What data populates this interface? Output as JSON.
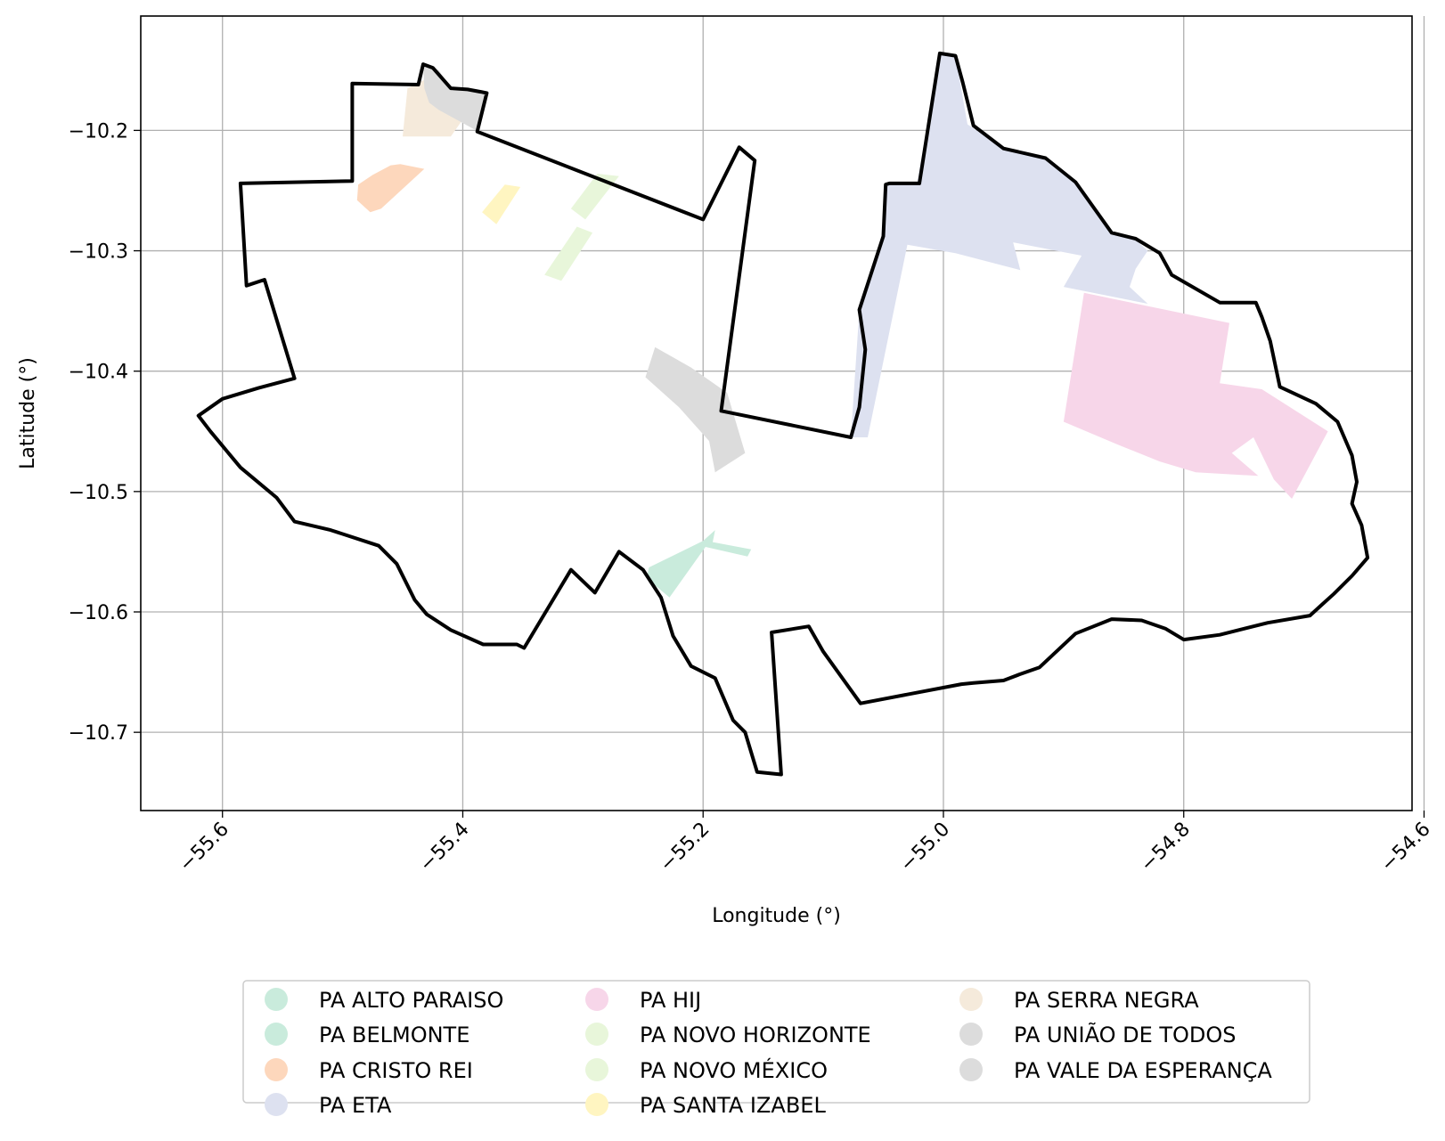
{
  "chart_data": {
    "type": "map",
    "xlabel": "Longitude (°)",
    "ylabel": "Latitude (°)",
    "xlim": [
      -55.668,
      -54.61
    ],
    "ylim": [
      -10.765,
      -10.105
    ],
    "grid": true,
    "x_ticks": [
      -55.6,
      -55.4,
      -55.2,
      -55.0,
      -54.8,
      -54.6
    ],
    "x_tick_labels": [
      "−55.6",
      "−55.4",
      "−55.2",
      "−55.0",
      "−54.8",
      "−54.6"
    ],
    "y_ticks": [
      -10.2,
      -10.3,
      -10.4,
      -10.5,
      -10.6,
      -10.7
    ],
    "y_tick_labels": [
      "−10.2",
      "−10.3",
      "−10.4",
      "−10.5",
      "−10.6",
      "−10.7"
    ],
    "legend_position": "bottom-center",
    "boundary": {
      "color": "#000000",
      "points": [
        [
          -55.62,
          -10.437
        ],
        [
          -55.6,
          -10.423
        ],
        [
          -55.57,
          -10.414
        ],
        [
          -55.54,
          -10.406
        ],
        [
          -55.565,
          -10.324
        ],
        [
          -55.58,
          -10.329
        ],
        [
          -55.585,
          -10.244
        ],
        [
          -55.492,
          -10.242
        ],
        [
          -55.492,
          -10.161
        ],
        [
          -55.437,
          -10.162
        ],
        [
          -55.433,
          -10.145
        ],
        [
          -55.425,
          -10.148
        ],
        [
          -55.41,
          -10.165
        ],
        [
          -55.396,
          -10.166
        ],
        [
          -55.385,
          -10.168
        ],
        [
          -55.38,
          -10.169
        ],
        [
          -55.388,
          -10.201
        ],
        [
          -55.2,
          -10.274
        ],
        [
          -55.17,
          -10.214
        ],
        [
          -55.157,
          -10.225
        ],
        [
          -55.185,
          -10.433
        ],
        [
          -55.077,
          -10.455
        ],
        [
          -55.07,
          -10.43
        ],
        [
          -55.065,
          -10.382
        ],
        [
          -55.07,
          -10.349
        ],
        [
          -55.05,
          -10.288
        ],
        [
          -55.048,
          -10.245
        ],
        [
          -55.045,
          -10.244
        ],
        [
          -55.02,
          -10.244
        ],
        [
          -55.003,
          -10.136
        ],
        [
          -54.99,
          -10.138
        ],
        [
          -54.984,
          -10.16
        ],
        [
          -54.975,
          -10.196
        ],
        [
          -54.95,
          -10.215
        ],
        [
          -54.915,
          -10.223
        ],
        [
          -54.89,
          -10.243
        ],
        [
          -54.86,
          -10.285
        ],
        [
          -54.84,
          -10.29
        ],
        [
          -54.82,
          -10.302
        ],
        [
          -54.81,
          -10.32
        ],
        [
          -54.77,
          -10.343
        ],
        [
          -54.74,
          -10.343
        ],
        [
          -54.735,
          -10.355
        ],
        [
          -54.728,
          -10.375
        ],
        [
          -54.72,
          -10.413
        ],
        [
          -54.69,
          -10.427
        ],
        [
          -54.672,
          -10.442
        ],
        [
          -54.66,
          -10.47
        ],
        [
          -54.656,
          -10.492
        ],
        [
          -54.66,
          -10.51
        ],
        [
          -54.652,
          -10.528
        ],
        [
          -54.647,
          -10.555
        ],
        [
          -54.66,
          -10.57
        ],
        [
          -54.675,
          -10.585
        ],
        [
          -54.685,
          -10.594
        ],
        [
          -54.695,
          -10.603
        ],
        [
          -54.73,
          -10.609
        ],
        [
          -54.77,
          -10.619
        ],
        [
          -54.8,
          -10.623
        ],
        [
          -54.815,
          -10.614
        ],
        [
          -54.835,
          -10.607
        ],
        [
          -54.86,
          -10.606
        ],
        [
          -54.89,
          -10.618
        ],
        [
          -54.92,
          -10.646
        ],
        [
          -54.937,
          -10.652
        ],
        [
          -54.95,
          -10.657
        ],
        [
          -54.975,
          -10.659
        ],
        [
          -54.985,
          -10.66
        ],
        [
          -55.069,
          -10.676
        ],
        [
          -55.1,
          -10.633
        ],
        [
          -55.112,
          -10.612
        ],
        [
          -55.143,
          -10.617
        ],
        [
          -55.135,
          -10.735
        ],
        [
          -55.155,
          -10.733
        ],
        [
          -55.165,
          -10.7
        ],
        [
          -55.175,
          -10.69
        ],
        [
          -55.19,
          -10.655
        ],
        [
          -55.21,
          -10.645
        ],
        [
          -55.225,
          -10.62
        ],
        [
          -55.235,
          -10.588
        ],
        [
          -55.25,
          -10.565
        ],
        [
          -55.27,
          -10.55
        ],
        [
          -55.29,
          -10.584
        ],
        [
          -55.31,
          -10.565
        ],
        [
          -55.349,
          -10.63
        ],
        [
          -55.355,
          -10.627
        ],
        [
          -55.383,
          -10.627
        ],
        [
          -55.41,
          -10.615
        ],
        [
          -55.43,
          -10.602
        ],
        [
          -55.44,
          -10.59
        ],
        [
          -55.455,
          -10.56
        ],
        [
          -55.47,
          -10.545
        ],
        [
          -55.51,
          -10.532
        ],
        [
          -55.54,
          -10.525
        ],
        [
          -55.555,
          -10.505
        ],
        [
          -55.585,
          -10.48
        ],
        [
          -55.61,
          -10.45
        ],
        [
          -55.62,
          -10.437
        ]
      ]
    },
    "regions": [
      {
        "name": "PA ALTO PARAISO",
        "color": "#c9ebdc",
        "polygons": [
          [
            [
              -55.245,
              -10.563
            ],
            [
              -55.2,
              -10.541
            ],
            [
              -55.19,
              -10.532
            ],
            [
              -55.192,
              -10.542
            ],
            [
              -55.16,
              -10.548
            ],
            [
              -55.163,
              -10.554
            ],
            [
              -55.198,
              -10.546
            ],
            [
              -55.228,
              -10.588
            ],
            [
              -55.247,
              -10.572
            ]
          ]
        ]
      },
      {
        "name": "PA BELMONTE",
        "color": "#c9ebdc",
        "polygons": []
      },
      {
        "name": "PA CRISTO REI",
        "color": "#fdd7bc",
        "polygons": [
          [
            [
              -55.475,
              -10.237
            ],
            [
              -55.46,
              -10.229
            ],
            [
              -55.452,
              -10.228
            ],
            [
              -55.432,
              -10.232
            ],
            [
              -55.468,
              -10.265
            ],
            [
              -55.477,
              -10.268
            ],
            [
              -55.488,
              -10.258
            ],
            [
              -55.487,
              -10.245
            ]
          ]
        ]
      },
      {
        "name": "PA ETA",
        "color": "#dde1f0",
        "polygons": [
          [
            [
              -55.048,
              -10.245
            ],
            [
              -55.022,
              -10.244
            ],
            [
              -55.003,
              -10.137
            ],
            [
              -54.99,
              -10.138
            ],
            [
              -54.98,
              -10.195
            ],
            [
              -54.95,
              -10.215
            ],
            [
              -54.913,
              -10.224
            ],
            [
              -54.89,
              -10.244
            ],
            [
              -54.86,
              -10.285
            ],
            [
              -54.84,
              -10.291
            ],
            [
              -54.83,
              -10.3
            ],
            [
              -54.84,
              -10.315
            ],
            [
              -54.845,
              -10.33
            ],
            [
              -54.83,
              -10.344
            ],
            [
              -54.9,
              -10.33
            ],
            [
              -54.885,
              -10.304
            ],
            [
              -54.942,
              -10.293
            ],
            [
              -54.936,
              -10.316
            ],
            [
              -54.99,
              -10.302
            ],
            [
              -55.03,
              -10.295
            ],
            [
              -55.063,
              -10.455
            ],
            [
              -55.077,
              -10.455
            ],
            [
              -55.07,
              -10.349
            ],
            [
              -55.05,
              -10.288
            ]
          ]
        ]
      },
      {
        "name": "PA HIJ",
        "color": "#f7d6e9",
        "polygons": [
          [
            [
              -54.883,
              -10.335
            ],
            [
              -54.762,
              -10.36
            ],
            [
              -54.77,
              -10.41
            ],
            [
              -54.735,
              -10.415
            ],
            [
              -54.68,
              -10.45
            ],
            [
              -54.71,
              -10.506
            ],
            [
              -54.725,
              -10.49
            ],
            [
              -54.742,
              -10.455
            ],
            [
              -54.76,
              -10.468
            ],
            [
              -54.738,
              -10.487
            ],
            [
              -54.79,
              -10.484
            ],
            [
              -54.82,
              -10.475
            ],
            [
              -54.855,
              -10.461
            ],
            [
              -54.9,
              -10.442
            ]
          ]
        ]
      },
      {
        "name": "PA NOVO HORIZONTE",
        "color": "#e8f6da",
        "polygons": [
          [
            [
              -55.288,
              -10.236
            ],
            [
              -55.27,
              -10.238
            ],
            [
              -55.298,
              -10.274
            ],
            [
              -55.31,
              -10.265
            ]
          ]
        ]
      },
      {
        "name": "PA NOVO MÉXICO",
        "color": "#e8f6da",
        "polygons": [
          [
            [
              -55.305,
              -10.28
            ],
            [
              -55.292,
              -10.285
            ],
            [
              -55.318,
              -10.325
            ],
            [
              -55.332,
              -10.32
            ]
          ]
        ]
      },
      {
        "name": "PA SANTA IZABEL",
        "color": "#fff5c1",
        "polygons": [
          [
            [
              -55.365,
              -10.245
            ],
            [
              -55.352,
              -10.247
            ],
            [
              -55.372,
              -10.278
            ],
            [
              -55.384,
              -10.268
            ]
          ]
        ]
      },
      {
        "name": "PA SERRA NEGRA",
        "color": "#f5eadb",
        "polygons": [
          [
            [
              -55.446,
              -10.165
            ],
            [
              -55.432,
              -10.158
            ],
            [
              -55.42,
              -10.162
            ],
            [
              -55.41,
              -10.168
            ],
            [
              -55.398,
              -10.172
            ],
            [
              -55.388,
              -10.177
            ],
            [
              -55.398,
              -10.188
            ],
            [
              -55.41,
              -10.205
            ],
            [
              -55.45,
              -10.205
            ]
          ]
        ]
      },
      {
        "name": "PA UNIÃO DE TODOS",
        "color": "#dcdcdc",
        "polygons": [
          [
            [
              -55.433,
              -10.145
            ],
            [
              -55.42,
              -10.15
            ],
            [
              -55.41,
              -10.165
            ],
            [
              -55.38,
              -10.168
            ],
            [
              -55.387,
              -10.201
            ],
            [
              -55.42,
              -10.183
            ],
            [
              -55.428,
              -10.177
            ],
            [
              -55.432,
              -10.165
            ]
          ]
        ]
      },
      {
        "name": "PA VALE DA ESPERANÇA",
        "color": "#dcdcdc",
        "polygons": [
          [
            [
              -55.24,
              -10.38
            ],
            [
              -55.21,
              -10.397
            ],
            [
              -55.18,
              -10.418
            ],
            [
              -55.165,
              -10.468
            ],
            [
              -55.19,
              -10.484
            ],
            [
              -55.195,
              -10.458
            ],
            [
              -55.22,
              -10.43
            ],
            [
              -55.248,
              -10.405
            ]
          ]
        ]
      }
    ]
  }
}
